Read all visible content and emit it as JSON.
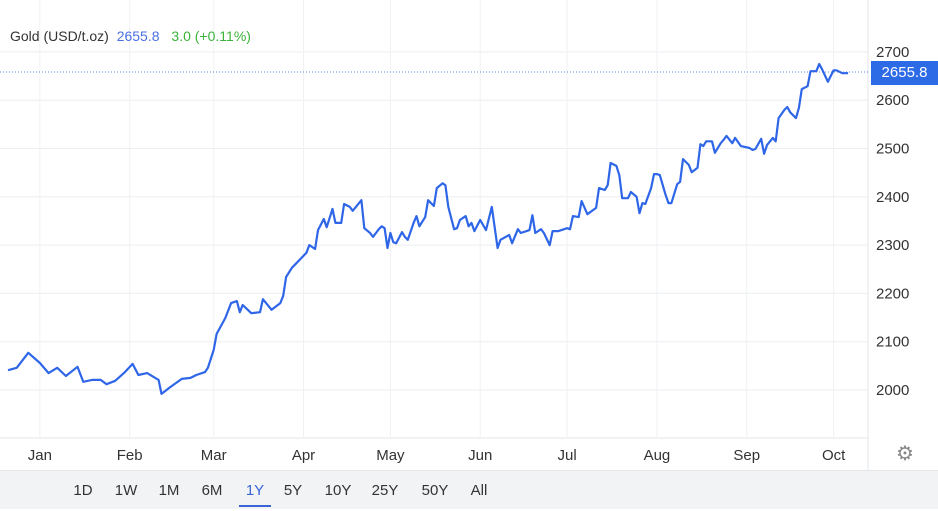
{
  "legend": {
    "name": "Gold (USD/t.oz)",
    "price": "2655.8",
    "change": "3.0 (+0.11%)"
  },
  "price_tag": "2655.8",
  "settings_icon": "gear-icon",
  "ranges": [
    "1D",
    "1W",
    "1M",
    "6M",
    "1Y",
    "5Y",
    "10Y",
    "25Y",
    "50Y",
    "All"
  ],
  "active_range": "1Y",
  "colors": {
    "line": "#2f66e8",
    "up": "#3bb33b",
    "price": "#4a6fe0",
    "tag": "#2d6be6"
  },
  "chart_data": {
    "type": "line",
    "title": "",
    "xlabel": "",
    "ylabel": "",
    "x_tick_labels": [
      "Jan",
      "Feb",
      "Mar",
      "Apr",
      "May",
      "Jun",
      "Jul",
      "Aug",
      "Sep",
      "Oct"
    ],
    "y_ticks": [
      2000,
      2100,
      2200,
      2300,
      2400,
      2500,
      2600,
      2700
    ],
    "ylim": [
      1900,
      2800
    ],
    "grid": true,
    "y_axis_side": "right",
    "last_value": 2655.8,
    "series": [
      {
        "points": [
          [
            "2023-12-21",
            2041
          ],
          [
            "2023-12-24",
            2046
          ],
          [
            "2023-12-28",
            2077
          ],
          [
            "2024-01-01",
            2056
          ],
          [
            "2024-01-04",
            2035
          ],
          [
            "2024-01-07",
            2046
          ],
          [
            "2024-01-10",
            2029
          ],
          [
            "2024-01-14",
            2048
          ],
          [
            "2024-01-16",
            2017
          ],
          [
            "2024-01-19",
            2021
          ],
          [
            "2024-01-22",
            2021
          ],
          [
            "2024-01-24",
            2012
          ],
          [
            "2024-01-27",
            2019
          ],
          [
            "2024-01-30",
            2035
          ],
          [
            "2024-02-02",
            2054
          ],
          [
            "2024-02-04",
            2031
          ],
          [
            "2024-02-07",
            2035
          ],
          [
            "2024-02-11",
            2021
          ],
          [
            "2024-02-12",
            1992
          ],
          [
            "2024-02-15",
            2006
          ],
          [
            "2024-02-19",
            2023
          ],
          [
            "2024-02-22",
            2025
          ],
          [
            "2024-02-24",
            2031
          ],
          [
            "2024-02-27",
            2037
          ],
          [
            "2024-02-28",
            2046
          ],
          [
            "2024-03-01",
            2083
          ],
          [
            "2024-03-02",
            2116
          ],
          [
            "2024-03-05",
            2149
          ],
          [
            "2024-03-07",
            2180
          ],
          [
            "2024-03-09",
            2184
          ],
          [
            "2024-03-10",
            2161
          ],
          [
            "2024-03-11",
            2176
          ],
          [
            "2024-03-14",
            2159
          ],
          [
            "2024-03-17",
            2161
          ],
          [
            "2024-03-18",
            2188
          ],
          [
            "2024-03-21",
            2166
          ],
          [
            "2024-03-24",
            2180
          ],
          [
            "2024-03-25",
            2195
          ],
          [
            "2024-03-26",
            2234
          ],
          [
            "2024-03-28",
            2253
          ],
          [
            "2024-04-02",
            2284
          ],
          [
            "2024-04-03",
            2300
          ],
          [
            "2024-04-05",
            2292
          ],
          [
            "2024-04-06",
            2331
          ],
          [
            "2024-04-08",
            2354
          ],
          [
            "2024-04-09",
            2337
          ],
          [
            "2024-04-11",
            2375
          ],
          [
            "2024-04-12",
            2346
          ],
          [
            "2024-04-14",
            2346
          ],
          [
            "2024-04-15",
            2385
          ],
          [
            "2024-04-17",
            2379
          ],
          [
            "2024-04-18",
            2371
          ],
          [
            "2024-04-21",
            2393
          ],
          [
            "2024-04-22",
            2335
          ],
          [
            "2024-04-24",
            2325
          ],
          [
            "2024-04-25",
            2317
          ],
          [
            "2024-04-27",
            2333
          ],
          [
            "2024-04-28",
            2339
          ],
          [
            "2024-04-29",
            2335
          ],
          [
            "2024-04-30",
            2294
          ],
          [
            "2024-05-01",
            2325
          ],
          [
            "2024-05-02",
            2306
          ],
          [
            "2024-05-03",
            2304
          ],
          [
            "2024-05-05",
            2327
          ],
          [
            "2024-05-06",
            2317
          ],
          [
            "2024-05-07",
            2311
          ],
          [
            "2024-05-09",
            2346
          ],
          [
            "2024-05-10",
            2360
          ],
          [
            "2024-05-11",
            2339
          ],
          [
            "2024-05-13",
            2358
          ],
          [
            "2024-05-14",
            2393
          ],
          [
            "2024-05-16",
            2381
          ],
          [
            "2024-05-17",
            2418
          ],
          [
            "2024-05-19",
            2428
          ],
          [
            "2024-05-20",
            2424
          ],
          [
            "2024-05-21",
            2379
          ],
          [
            "2024-05-23",
            2333
          ],
          [
            "2024-05-24",
            2335
          ],
          [
            "2024-05-25",
            2352
          ],
          [
            "2024-05-27",
            2360
          ],
          [
            "2024-05-28",
            2339
          ],
          [
            "2024-05-29",
            2346
          ],
          [
            "2024-05-30",
            2329
          ],
          [
            "2024-06-01",
            2352
          ],
          [
            "2024-06-03",
            2331
          ],
          [
            "2024-06-05",
            2379
          ],
          [
            "2024-06-07",
            2294
          ],
          [
            "2024-06-08",
            2311
          ],
          [
            "2024-06-11",
            2321
          ],
          [
            "2024-06-12",
            2304
          ],
          [
            "2024-06-14",
            2333
          ],
          [
            "2024-06-15",
            2325
          ],
          [
            "2024-06-17",
            2329
          ],
          [
            "2024-06-18",
            2331
          ],
          [
            "2024-06-19",
            2362
          ],
          [
            "2024-06-20",
            2325
          ],
          [
            "2024-06-22",
            2333
          ],
          [
            "2024-06-23",
            2325
          ],
          [
            "2024-06-25",
            2300
          ],
          [
            "2024-06-26",
            2329
          ],
          [
            "2024-06-28",
            2329
          ],
          [
            "2024-07-01",
            2335
          ],
          [
            "2024-07-02",
            2333
          ],
          [
            "2024-07-03",
            2360
          ],
          [
            "2024-07-05",
            2358
          ],
          [
            "2024-07-06",
            2391
          ],
          [
            "2024-07-08",
            2364
          ],
          [
            "2024-07-11",
            2377
          ],
          [
            "2024-07-12",
            2418
          ],
          [
            "2024-07-14",
            2414
          ],
          [
            "2024-07-15",
            2424
          ],
          [
            "2024-07-16",
            2470
          ],
          [
            "2024-07-18",
            2464
          ],
          [
            "2024-07-19",
            2445
          ],
          [
            "2024-07-20",
            2397
          ],
          [
            "2024-07-22",
            2397
          ],
          [
            "2024-07-23",
            2410
          ],
          [
            "2024-07-25",
            2400
          ],
          [
            "2024-07-26",
            2366
          ],
          [
            "2024-07-27",
            2387
          ],
          [
            "2024-07-28",
            2385
          ],
          [
            "2024-07-30",
            2418
          ],
          [
            "2024-07-31",
            2447
          ],
          [
            "2024-08-01",
            2447
          ],
          [
            "2024-08-02",
            2445
          ],
          [
            "2024-08-04",
            2404
          ],
          [
            "2024-08-05",
            2387
          ],
          [
            "2024-08-06",
            2387
          ],
          [
            "2024-08-08",
            2426
          ],
          [
            "2024-08-09",
            2431
          ],
          [
            "2024-08-10",
            2478
          ],
          [
            "2024-08-12",
            2466
          ],
          [
            "2024-08-13",
            2451
          ],
          [
            "2024-08-15",
            2460
          ],
          [
            "2024-08-16",
            2509
          ],
          [
            "2024-08-17",
            2505
          ],
          [
            "2024-08-18",
            2515
          ],
          [
            "2024-08-20",
            2515
          ],
          [
            "2024-08-21",
            2491
          ],
          [
            "2024-08-23",
            2511
          ],
          [
            "2024-08-24",
            2518
          ],
          [
            "2024-08-25",
            2526
          ],
          [
            "2024-08-27",
            2511
          ],
          [
            "2024-08-28",
            2522
          ],
          [
            "2024-08-30",
            2505
          ],
          [
            "2024-09-02",
            2501
          ],
          [
            "2024-09-03",
            2497
          ],
          [
            "2024-09-04",
            2499
          ],
          [
            "2024-09-06",
            2520
          ],
          [
            "2024-09-07",
            2489
          ],
          [
            "2024-09-08",
            2507
          ],
          [
            "2024-09-10",
            2522
          ],
          [
            "2024-09-11",
            2515
          ],
          [
            "2024-09-12",
            2563
          ],
          [
            "2024-09-14",
            2580
          ],
          [
            "2024-09-15",
            2586
          ],
          [
            "2024-09-16",
            2575
          ],
          [
            "2024-09-18",
            2563
          ],
          [
            "2024-09-19",
            2584
          ],
          [
            "2024-09-20",
            2623
          ],
          [
            "2024-09-22",
            2629
          ],
          [
            "2024-09-23",
            2660
          ],
          [
            "2024-09-25",
            2660
          ],
          [
            "2024-09-26",
            2675
          ],
          [
            "2024-09-27",
            2664
          ],
          [
            "2024-09-29",
            2638
          ],
          [
            "2024-10-01",
            2662
          ],
          [
            "2024-10-02",
            2662
          ],
          [
            "2024-10-04",
            2656
          ],
          [
            "2024-10-05",
            2656
          ],
          [
            "2024-10-06",
            2655.8
          ]
        ]
      }
    ]
  }
}
